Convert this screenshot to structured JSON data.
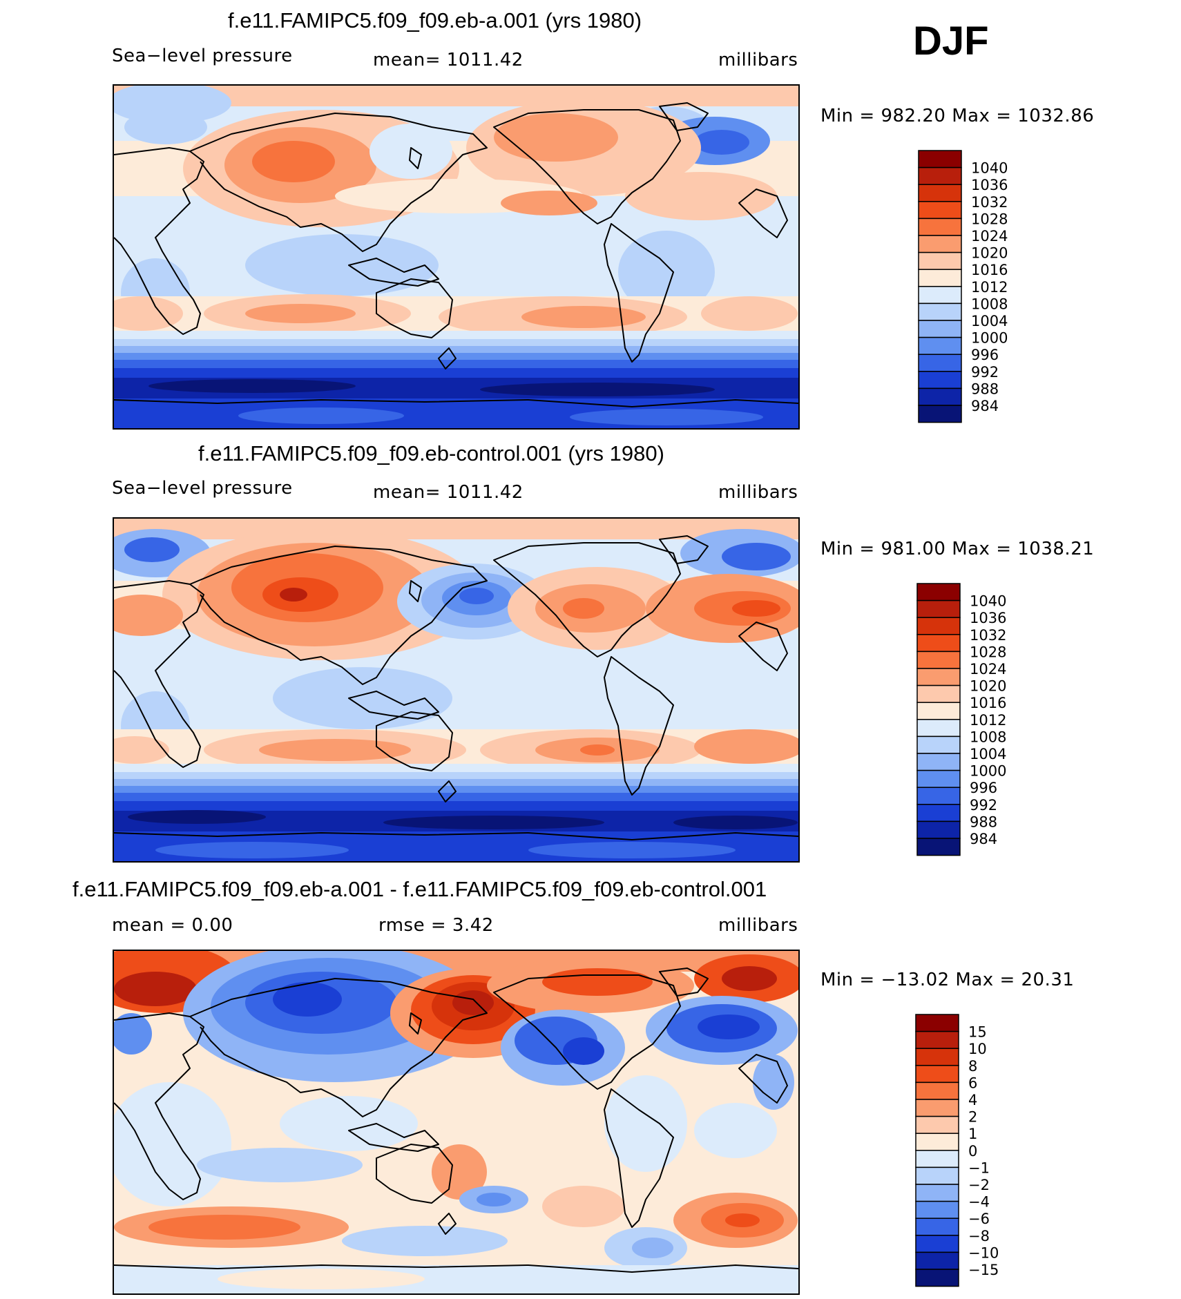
{
  "season_label": "DJF",
  "panels": [
    {
      "title": "f.e11.FAMIPC5.f09_f09.eb-a.001 (yrs 1980)",
      "left_label": "Sea−level pressure",
      "center_label": "mean=  1011.42",
      "units": "millibars",
      "minmax": "Min  =  982.20  Max  =  1032.86"
    },
    {
      "title": "f.e11.FAMIPC5.f09_f09.eb-control.001 (yrs 1980)",
      "left_label": "Sea−level pressure",
      "center_label": "mean=  1011.42",
      "units": "millibars",
      "minmax": "Min  =  981.00  Max  =  1038.21"
    },
    {
      "title": "f.e11.FAMIPC5.f09_f09.eb-a.001 - f.e11.FAMIPC5.f09_f09.eb-control.001",
      "left_label": "mean  =      0.00",
      "center_label": "rmse  =      3.42",
      "units": "millibars",
      "minmax": "Min  =  −13.02  Max  =    20.31"
    }
  ],
  "chart_data": [
    {
      "type": "heatmap",
      "title": "f.e11.FAMIPC5.f09_f09.eb-a.001 (yrs 1980)",
      "variable": "Sea−level pressure",
      "units": "millibars",
      "mean": 1011.42,
      "min": 982.2,
      "max": 1032.86,
      "colorbar_levels": [
        "1040",
        "1036",
        "1032",
        "1028",
        "1024",
        "1020",
        "1016",
        "1012",
        "1008",
        "1004",
        "1000",
        "996",
        "992",
        "988",
        "984"
      ],
      "colorbar_colors": [
        "#8b0000",
        "#b81f0c",
        "#d6330b",
        "#ee4d19",
        "#f7733d",
        "#fa9c6f",
        "#fdc9ad",
        "#fdebd9",
        "#dcebfb",
        "#b8d3fa",
        "#8fb4f6",
        "#5f8ff0",
        "#3765e6",
        "#1a3fd4",
        "#0d24a8",
        "#081476"
      ]
    },
    {
      "type": "heatmap",
      "title": "f.e11.FAMIPC5.f09_f09.eb-control.001 (yrs 1980)",
      "variable": "Sea−level pressure",
      "units": "millibars",
      "mean": 1011.42,
      "min": 981.0,
      "max": 1038.21,
      "colorbar_levels": [
        "1040",
        "1036",
        "1032",
        "1028",
        "1024",
        "1020",
        "1016",
        "1012",
        "1008",
        "1004",
        "1000",
        "996",
        "992",
        "988",
        "984"
      ],
      "colorbar_colors": [
        "#8b0000",
        "#b81f0c",
        "#d6330b",
        "#ee4d19",
        "#f7733d",
        "#fa9c6f",
        "#fdc9ad",
        "#fdebd9",
        "#dcebfb",
        "#b8d3fa",
        "#8fb4f6",
        "#5f8ff0",
        "#3765e6",
        "#1a3fd4",
        "#0d24a8",
        "#081476"
      ]
    },
    {
      "type": "heatmap",
      "title": "f.e11.FAMIPC5.f09_f09.eb-a.001 - f.e11.FAMIPC5.f09_f09.eb-control.001",
      "units": "millibars",
      "mean": 0.0,
      "rmse": 3.42,
      "min": -13.02,
      "max": 20.31,
      "colorbar_levels": [
        "15",
        "10",
        "8",
        "6",
        "4",
        "2",
        "1",
        "0",
        "−1",
        "−2",
        "−4",
        "−6",
        "−8",
        "−10",
        "−15"
      ],
      "colorbar_colors": [
        "#8b0000",
        "#b81f0c",
        "#d6330b",
        "#ee4d19",
        "#f7733d",
        "#fa9c6f",
        "#fdc9ad",
        "#fdebd9",
        "#dcebfb",
        "#b8d3fa",
        "#8fb4f6",
        "#5f8ff0",
        "#3765e6",
        "#1a3fd4",
        "#0d24a8",
        "#081476"
      ]
    }
  ]
}
